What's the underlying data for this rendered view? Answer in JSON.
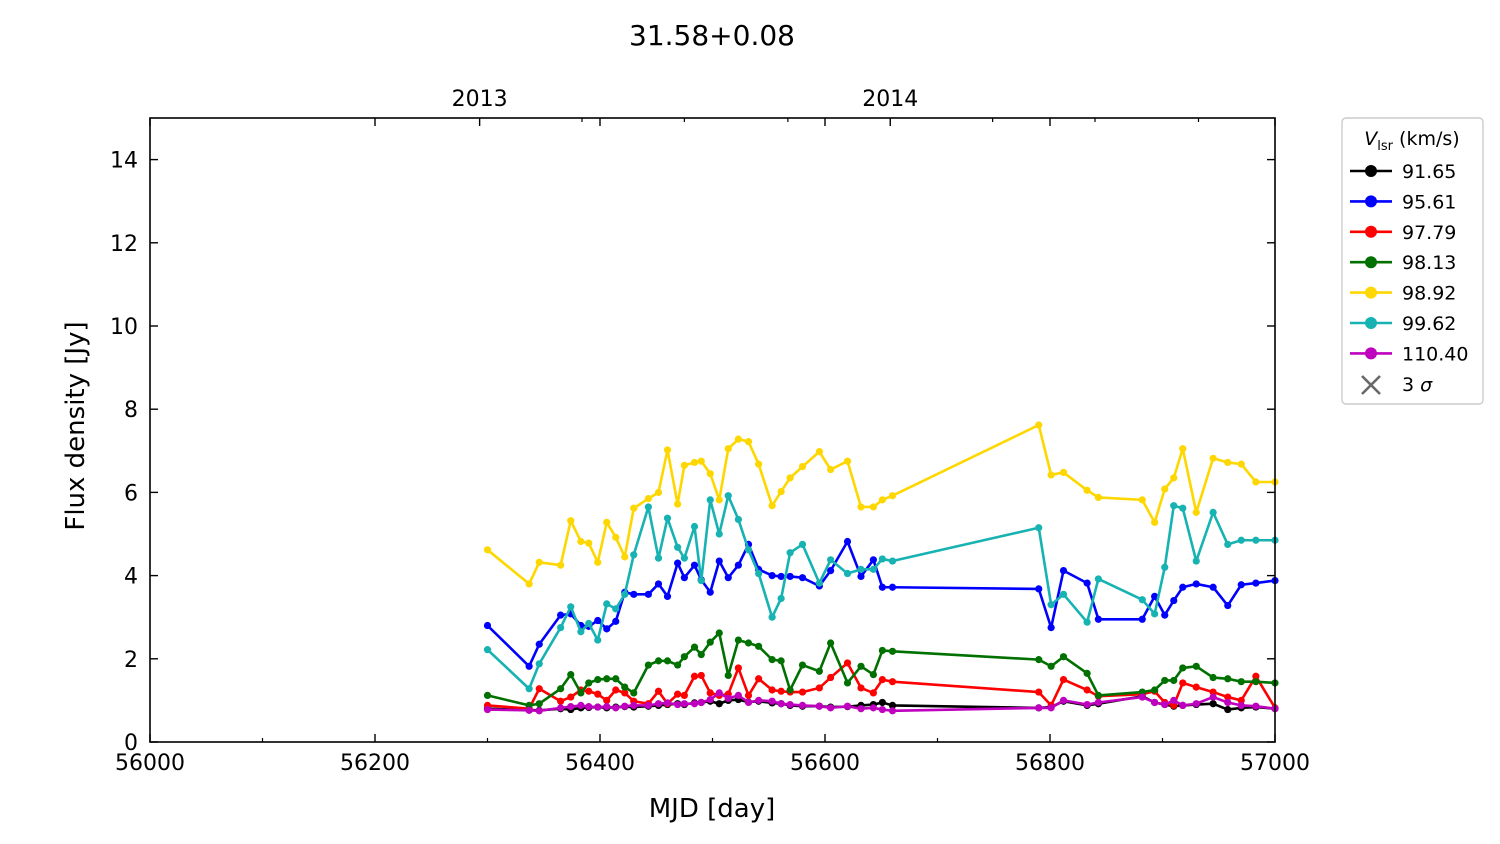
{
  "chart_data": {
    "type": "line",
    "title": "31.58+0.08",
    "xlabel": "MJD [day]",
    "ylabel": "Flux density [Jy]",
    "xlim": [
      56000,
      57000
    ],
    "ylim": [
      0,
      15
    ],
    "xticks": [
      56000,
      56200,
      56400,
      56600,
      56800,
      57000
    ],
    "yticks": [
      0,
      2,
      4,
      6,
      8,
      10,
      12,
      14
    ],
    "top_axis": {
      "labels": [
        {
          "x": 56293,
          "text": "2013"
        },
        {
          "x": 56658,
          "text": "2014"
        }
      ],
      "minor_ticks": [
        56384,
        56475,
        56567,
        56749,
        56840,
        56932
      ]
    },
    "legend": {
      "title_main": "V",
      "title_sub": "lsr",
      "title_rest": " (km/s)",
      "location": "upper-right-outside"
    },
    "sigma_marker": {
      "label_prefix": "3 ",
      "label_symbol": "σ",
      "color": "#696969"
    },
    "x": [
      56300,
      56337,
      56346,
      56365,
      56374,
      56383,
      56390,
      56398,
      56406,
      56414,
      56422,
      56430,
      56443,
      56452,
      56460,
      56469,
      56475,
      56484,
      56490,
      56498,
      56506,
      56514,
      56523,
      56532,
      56541,
      56553,
      56561,
      56569,
      56580,
      56595,
      56605,
      56620,
      56632,
      56643,
      56651,
      56660,
      56790,
      56801,
      56812,
      56833,
      56843,
      56882,
      56893,
      56902,
      56910,
      56918,
      56930,
      56945,
      56958,
      56970,
      56983,
      57000
    ],
    "series": [
      {
        "name": "91.65",
        "color": "#000000",
        "values": [
          0.8,
          0.77,
          0.76,
          0.8,
          0.78,
          0.82,
          0.83,
          0.84,
          0.82,
          0.84,
          0.85,
          0.84,
          0.86,
          0.88,
          0.9,
          0.92,
          0.9,
          0.94,
          0.95,
          0.98,
          0.92,
          1.0,
          1.02,
          0.96,
          0.98,
          0.94,
          0.92,
          0.88,
          0.86,
          0.86,
          0.84,
          0.85,
          0.88,
          0.9,
          0.95,
          0.88,
          0.82,
          0.84,
          0.98,
          0.88,
          0.92,
          1.1,
          0.95,
          0.9,
          0.86,
          0.88,
          0.9,
          0.92,
          0.78,
          0.82,
          0.84,
          0.8
        ]
      },
      {
        "name": "95.61",
        "color": "#0000ff",
        "values": [
          2.8,
          1.82,
          2.35,
          3.05,
          3.08,
          2.8,
          2.78,
          2.92,
          2.72,
          2.9,
          3.6,
          3.55,
          3.55,
          3.8,
          3.5,
          4.3,
          3.95,
          4.25,
          3.9,
          3.6,
          4.35,
          3.95,
          4.25,
          4.75,
          4.15,
          4.0,
          3.98,
          3.98,
          3.95,
          3.75,
          4.12,
          4.82,
          3.98,
          4.38,
          3.72,
          3.72,
          3.68,
          2.75,
          4.12,
          3.82,
          2.95,
          2.95,
          3.5,
          3.05,
          3.4,
          3.72,
          3.8,
          3.72,
          3.28,
          3.78,
          3.82,
          3.88
        ]
      },
      {
        "name": "97.79",
        "color": "#ff0000",
        "values": [
          0.88,
          0.8,
          1.28,
          0.98,
          1.08,
          1.25,
          1.22,
          1.15,
          1.0,
          1.25,
          1.18,
          0.98,
          0.92,
          1.22,
          0.92,
          1.15,
          1.12,
          1.58,
          1.6,
          1.18,
          1.12,
          1.15,
          1.78,
          1.12,
          1.52,
          1.25,
          1.22,
          1.2,
          1.2,
          1.3,
          1.55,
          1.9,
          1.3,
          1.18,
          1.5,
          1.45,
          1.2,
          0.88,
          1.5,
          1.25,
          1.1,
          1.15,
          1.22,
          0.95,
          0.88,
          1.42,
          1.32,
          1.2,
          1.08,
          1.0,
          1.58,
          0.82
        ]
      },
      {
        "name": "98.13",
        "color": "#007000",
        "values": [
          1.12,
          0.88,
          0.92,
          1.28,
          1.62,
          1.18,
          1.42,
          1.5,
          1.52,
          1.52,
          1.32,
          1.18,
          1.85,
          1.95,
          1.95,
          1.85,
          2.05,
          2.28,
          2.1,
          2.4,
          2.62,
          1.6,
          2.45,
          2.38,
          2.3,
          1.98,
          1.95,
          1.25,
          1.85,
          1.7,
          2.38,
          1.42,
          1.82,
          1.62,
          2.2,
          2.18,
          1.98,
          1.82,
          2.05,
          1.65,
          1.12,
          1.2,
          1.25,
          1.48,
          1.48,
          1.78,
          1.82,
          1.55,
          1.52,
          1.45,
          1.45,
          1.42
        ]
      },
      {
        "name": "98.92",
        "color": "#ffd700",
        "values": [
          4.62,
          3.8,
          4.32,
          4.25,
          5.32,
          4.82,
          4.78,
          4.32,
          5.28,
          4.92,
          4.45,
          5.62,
          5.85,
          6.0,
          7.02,
          5.72,
          6.65,
          6.72,
          6.75,
          6.45,
          5.82,
          7.05,
          7.28,
          7.22,
          6.68,
          5.68,
          6.02,
          6.35,
          6.62,
          6.98,
          6.55,
          6.75,
          5.65,
          5.65,
          5.82,
          5.92,
          7.62,
          6.42,
          6.48,
          6.05,
          5.88,
          5.82,
          5.28,
          6.08,
          6.35,
          7.05,
          5.52,
          6.82,
          6.72,
          6.68,
          6.25,
          6.25
        ]
      },
      {
        "name": "99.62",
        "color": "#17b2b2",
        "values": [
          2.22,
          1.28,
          1.88,
          2.75,
          3.25,
          2.65,
          2.85,
          2.45,
          3.32,
          3.2,
          3.55,
          4.5,
          5.65,
          4.42,
          5.38,
          4.68,
          4.42,
          5.18,
          3.88,
          5.82,
          5.0,
          5.92,
          5.35,
          4.62,
          4.05,
          3.0,
          3.45,
          4.55,
          4.75,
          3.82,
          4.38,
          4.05,
          4.15,
          4.15,
          4.4,
          4.35,
          5.15,
          3.3,
          3.55,
          2.88,
          3.92,
          3.42,
          3.08,
          4.2,
          5.68,
          5.62,
          4.35,
          5.52,
          4.75,
          4.85,
          4.85,
          4.85
        ]
      },
      {
        "name": "110.40",
        "color": "#bf00bf",
        "values": [
          0.78,
          0.76,
          0.75,
          0.82,
          0.85,
          0.88,
          0.85,
          0.84,
          0.85,
          0.82,
          0.86,
          0.88,
          0.88,
          0.92,
          0.94,
          0.9,
          0.92,
          0.92,
          0.95,
          1.02,
          1.18,
          1.05,
          1.12,
          0.95,
          1.0,
          0.98,
          0.92,
          0.9,
          0.88,
          0.86,
          0.82,
          0.86,
          0.8,
          0.82,
          0.78,
          0.75,
          0.82,
          0.82,
          1.0,
          0.9,
          0.95,
          1.08,
          0.95,
          0.9,
          1.0,
          0.88,
          0.92,
          1.08,
          0.95,
          0.88,
          0.86,
          0.8
        ]
      }
    ]
  }
}
